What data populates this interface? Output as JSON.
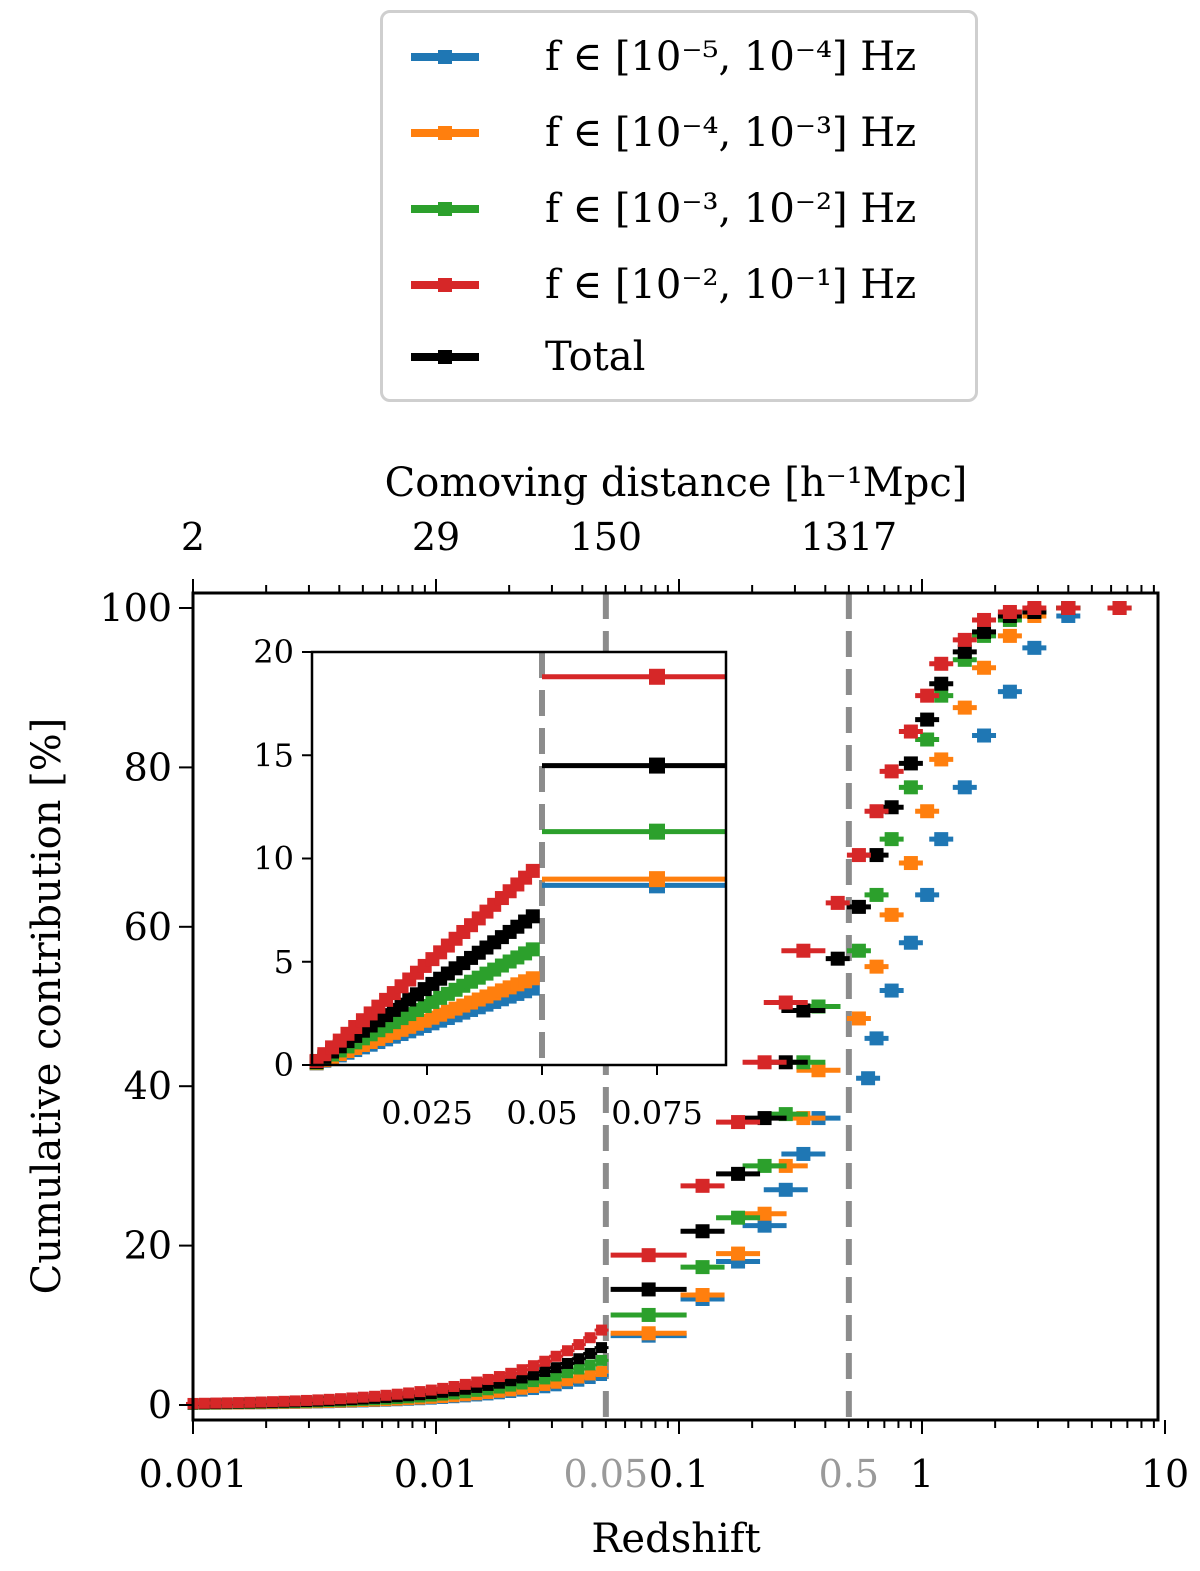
{
  "chart_data": {
    "type": "scatter",
    "xlabel": "Redshift",
    "ylabel": "Cumulative contribution [%]",
    "top_axis_label": "Comoving distance [h⁻¹Mpc]",
    "x_scale": "log",
    "xlim": [
      0.001,
      10
    ],
    "ylim": [
      0,
      100
    ],
    "x_tick_labels": [
      "0.001",
      "0.01",
      "0.1",
      "1",
      "10"
    ],
    "x_extra_tick_labels": [
      "0.05",
      "0.5"
    ],
    "y_tick_labels": [
      "0",
      "20",
      "40",
      "60",
      "80",
      "100"
    ],
    "top_axis": {
      "tick_values_redshift": [
        0.001,
        0.01,
        0.05,
        0.5
      ],
      "tick_labels": [
        "2",
        "29",
        "150",
        "1317"
      ]
    },
    "vlines_redshift": [
      0.05,
      0.5
    ],
    "legend_placement": "top (outside, above plot)",
    "series": [
      {
        "name": "f ∈ [10⁻⁵, 10⁻⁴] Hz",
        "color": "#1f77b4",
        "lowz_endpoint": [
          0.048,
          3.7
        ],
        "points": [
          [
            0.075,
            8.7
          ],
          [
            0.125,
            13.3
          ],
          [
            0.175,
            18.0
          ],
          [
            0.225,
            22.5
          ],
          [
            0.275,
            27.0
          ],
          [
            0.325,
            31.5
          ],
          [
            0.375,
            36.0
          ],
          [
            0.6,
            41.0
          ],
          [
            0.65,
            46.0
          ],
          [
            0.75,
            52.0
          ],
          [
            0.9,
            58.0
          ],
          [
            1.05,
            64.0
          ],
          [
            1.2,
            71.0
          ],
          [
            1.5,
            77.5
          ],
          [
            1.8,
            84.0
          ],
          [
            2.3,
            89.5
          ],
          [
            2.9,
            95.0
          ],
          [
            4.0,
            99.0
          ],
          [
            6.5,
            100.0
          ]
        ]
      },
      {
        "name": "f ∈ [10⁻⁴, 10⁻³] Hz",
        "color": "#ff7f0e",
        "lowz_endpoint": [
          0.048,
          4.2
        ],
        "points": [
          [
            0.075,
            9.0
          ],
          [
            0.125,
            13.8
          ],
          [
            0.175,
            19.0
          ],
          [
            0.225,
            24.0
          ],
          [
            0.275,
            30.0
          ],
          [
            0.325,
            36.0
          ],
          [
            0.375,
            42.0
          ],
          [
            0.55,
            48.5
          ],
          [
            0.65,
            55.0
          ],
          [
            0.75,
            61.5
          ],
          [
            0.9,
            68.0
          ],
          [
            1.05,
            74.5
          ],
          [
            1.2,
            81.0
          ],
          [
            1.5,
            87.5
          ],
          [
            1.8,
            92.5
          ],
          [
            2.3,
            96.5
          ],
          [
            2.9,
            99.0
          ],
          [
            4.0,
            100.0
          ],
          [
            6.5,
            100.0
          ]
        ]
      },
      {
        "name": "f ∈ [10⁻³, 10⁻²] Hz",
        "color": "#2ca02c",
        "lowz_endpoint": [
          0.048,
          5.6
        ],
        "points": [
          [
            0.075,
            11.3
          ],
          [
            0.125,
            17.3
          ],
          [
            0.175,
            23.5
          ],
          [
            0.225,
            30.0
          ],
          [
            0.275,
            36.5
          ],
          [
            0.325,
            43.0
          ],
          [
            0.375,
            50.0
          ],
          [
            0.55,
            57.0
          ],
          [
            0.65,
            64.0
          ],
          [
            0.75,
            71.0
          ],
          [
            0.9,
            77.5
          ],
          [
            1.05,
            83.5
          ],
          [
            1.2,
            89.0
          ],
          [
            1.5,
            93.5
          ],
          [
            1.8,
            96.5
          ],
          [
            2.3,
            98.5
          ],
          [
            2.9,
            99.5
          ],
          [
            4.0,
            100.0
          ],
          [
            6.5,
            100.0
          ]
        ]
      },
      {
        "name": "f ∈ [10⁻², 10⁻¹] Hz",
        "color": "#d62728",
        "lowz_endpoint": [
          0.048,
          9.4
        ],
        "points": [
          [
            0.075,
            18.8
          ],
          [
            0.125,
            27.5
          ],
          [
            0.175,
            35.5
          ],
          [
            0.225,
            43.0
          ],
          [
            0.275,
            50.5
          ],
          [
            0.325,
            57.0
          ],
          [
            0.45,
            63.0
          ],
          [
            0.55,
            69.0
          ],
          [
            0.65,
            74.5
          ],
          [
            0.75,
            79.5
          ],
          [
            0.9,
            84.5
          ],
          [
            1.05,
            89.0
          ],
          [
            1.2,
            93.0
          ],
          [
            1.5,
            96.0
          ],
          [
            1.8,
            98.5
          ],
          [
            2.3,
            99.5
          ],
          [
            2.9,
            100.0
          ],
          [
            4.0,
            100.0
          ],
          [
            6.5,
            100.0
          ]
        ]
      },
      {
        "name": "Total",
        "color": "#000000",
        "lowz_endpoint": [
          0.048,
          7.2
        ],
        "points": [
          [
            0.075,
            14.5
          ],
          [
            0.125,
            21.8
          ],
          [
            0.175,
            29.0
          ],
          [
            0.225,
            36.0
          ],
          [
            0.275,
            43.0
          ],
          [
            0.325,
            49.5
          ],
          [
            0.45,
            56.0
          ],
          [
            0.55,
            62.5
          ],
          [
            0.65,
            69.0
          ],
          [
            0.75,
            75.0
          ],
          [
            0.9,
            80.5
          ],
          [
            1.05,
            86.0
          ],
          [
            1.2,
            90.5
          ],
          [
            1.5,
            94.5
          ],
          [
            1.8,
            97.0
          ],
          [
            2.3,
            99.0
          ],
          [
            2.9,
            99.5
          ],
          [
            4.0,
            100.0
          ],
          [
            6.5,
            100.0
          ]
        ]
      }
    ],
    "inset": {
      "xlim": [
        0,
        0.09
      ],
      "ylim": [
        0,
        20
      ],
      "x_tick_labels": [
        "0.025",
        "0.05",
        "0.075"
      ],
      "y_tick_labels": [
        "0",
        "5",
        "10",
        "15",
        "20"
      ],
      "vline": 0.05,
      "bin_values": [
        {
          "name": "blue",
          "color": "#1f77b4",
          "end": 3.7,
          "bin": 8.7
        },
        {
          "name": "orange",
          "color": "#ff7f0e",
          "end": 4.2,
          "bin": 9.0
        },
        {
          "name": "green",
          "color": "#2ca02c",
          "end": 5.6,
          "bin": 11.3
        },
        {
          "name": "red",
          "color": "#d62728",
          "end": 9.4,
          "bin": 18.8
        },
        {
          "name": "black",
          "color": "#000000",
          "end": 7.2,
          "bin": 14.5
        }
      ]
    }
  },
  "legend": {
    "items": [
      {
        "label": "f ∈ [10⁻⁵, 10⁻⁴] Hz",
        "color": "#1f77b4"
      },
      {
        "label": "f ∈ [10⁻⁴, 10⁻³] Hz",
        "color": "#ff7f0e"
      },
      {
        "label": "f ∈ [10⁻³, 10⁻²] Hz",
        "color": "#2ca02c"
      },
      {
        "label": "f ∈ [10⁻², 10⁻¹] Hz",
        "color": "#d62728"
      },
      {
        "label": "Total",
        "color": "#000000"
      }
    ]
  }
}
